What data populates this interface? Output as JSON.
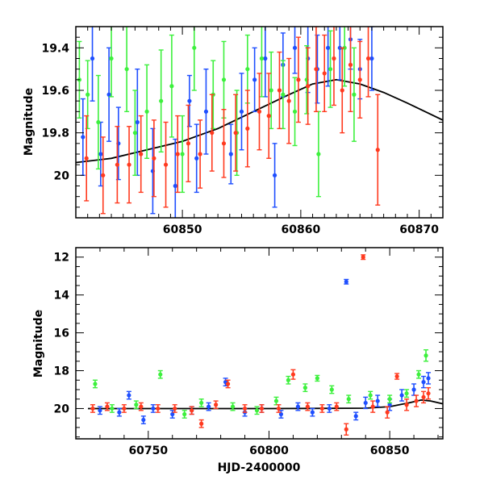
{
  "chart_data": [
    {
      "type": "scatter",
      "panel": "top",
      "xlabel": "",
      "ylabel": "Magnitude",
      "xlim": [
        60841,
        60872
      ],
      "ylim": [
        20.2,
        19.3
      ],
      "y_inverted": true,
      "grid": false,
      "x_ticks": [
        60850,
        60860,
        60870
      ],
      "y_ticks": [
        19.4,
        19.6,
        19.8,
        20
      ],
      "series": [
        {
          "color": "#1f4fff",
          "marker": "circle",
          "error_bars": true,
          "points": [
            {
              "x": 60841.6,
              "y": 19.82,
              "e": 0.18
            },
            {
              "x": 60842.4,
              "y": 19.45,
              "e": 0.2
            },
            {
              "x": 60843.1,
              "y": 19.9,
              "e": 0.15
            },
            {
              "x": 60843.8,
              "y": 19.62,
              "e": 0.22
            },
            {
              "x": 60844.6,
              "y": 19.85,
              "e": 0.17
            },
            {
              "x": 60846.2,
              "y": 19.75,
              "e": 0.25
            },
            {
              "x": 60847.5,
              "y": 19.98,
              "e": 0.2
            },
            {
              "x": 60849.4,
              "y": 20.05,
              "e": 0.22
            },
            {
              "x": 60850.6,
              "y": 19.65,
              "e": 0.12
            },
            {
              "x": 60851.2,
              "y": 19.92,
              "e": 0.16
            },
            {
              "x": 60852.0,
              "y": 19.7,
              "e": 0.2
            },
            {
              "x": 60854.1,
              "y": 19.9,
              "e": 0.14
            },
            {
              "x": 60855.0,
              "y": 19.7,
              "e": 0.18
            },
            {
              "x": 60856.1,
              "y": 19.55,
              "e": 0.15
            },
            {
              "x": 60857.0,
              "y": 19.45,
              "e": 0.18
            },
            {
              "x": 60857.8,
              "y": 20.0,
              "e": 0.15
            },
            {
              "x": 60858.5,
              "y": 19.48,
              "e": 0.15
            },
            {
              "x": 60859.5,
              "y": 19.4,
              "e": 0.12
            },
            {
              "x": 60860.6,
              "y": 19.45,
              "e": 0.16
            },
            {
              "x": 60861.4,
              "y": 19.5,
              "e": 0.16
            },
            {
              "x": 60862.3,
              "y": 19.4,
              "e": 0.18
            },
            {
              "x": 60863.3,
              "y": 19.4,
              "e": 0.15
            },
            {
              "x": 60864.2,
              "y": 19.36,
              "e": 0.14
            },
            {
              "x": 60865.0,
              "y": 19.5,
              "e": 0.14
            },
            {
              "x": 60866.0,
              "y": 19.45,
              "e": 0.15
            }
          ]
        },
        {
          "color": "#3df03d",
          "marker": "circle",
          "error_bars": true,
          "points": [
            {
              "x": 60841.3,
              "y": 19.55,
              "e": 0.18
            },
            {
              "x": 60842.0,
              "y": 19.62,
              "e": 0.16
            },
            {
              "x": 60842.9,
              "y": 19.75,
              "e": 0.22
            },
            {
              "x": 60844.0,
              "y": 19.45,
              "e": 0.18
            },
            {
              "x": 60845.3,
              "y": 19.5,
              "e": 0.2
            },
            {
              "x": 60846.0,
              "y": 19.8,
              "e": 0.2
            },
            {
              "x": 60847.0,
              "y": 19.7,
              "e": 0.22
            },
            {
              "x": 60848.2,
              "y": 19.65,
              "e": 0.24
            },
            {
              "x": 60849.1,
              "y": 19.58,
              "e": 0.24
            },
            {
              "x": 60850.0,
              "y": 19.9,
              "e": 0.18
            },
            {
              "x": 60851.0,
              "y": 19.4,
              "e": 0.2
            },
            {
              "x": 60852.6,
              "y": 19.62,
              "e": 0.16
            },
            {
              "x": 60853.5,
              "y": 19.55,
              "e": 0.18
            },
            {
              "x": 60854.6,
              "y": 19.8,
              "e": 0.2
            },
            {
              "x": 60855.5,
              "y": 19.5,
              "e": 0.16
            },
            {
              "x": 60856.7,
              "y": 19.45,
              "e": 0.18
            },
            {
              "x": 60857.5,
              "y": 19.6,
              "e": 0.18
            },
            {
              "x": 60858.5,
              "y": 19.62,
              "e": 0.16
            },
            {
              "x": 60859.5,
              "y": 19.7,
              "e": 0.16
            },
            {
              "x": 60860.5,
              "y": 19.55,
              "e": 0.16
            },
            {
              "x": 60861.5,
              "y": 19.9,
              "e": 0.2
            },
            {
              "x": 60862.5,
              "y": 19.5,
              "e": 0.18
            },
            {
              "x": 60863.7,
              "y": 19.4,
              "e": 0.18
            },
            {
              "x": 60864.5,
              "y": 19.62,
              "e": 0.22
            }
          ]
        },
        {
          "color": "#ff3a1f",
          "marker": "circle",
          "error_bars": true,
          "points": [
            {
              "x": 60841.9,
              "y": 19.92,
              "e": 0.2
            },
            {
              "x": 60843.3,
              "y": 20.0,
              "e": 0.18
            },
            {
              "x": 60844.5,
              "y": 19.95,
              "e": 0.18
            },
            {
              "x": 60845.5,
              "y": 19.95,
              "e": 0.18
            },
            {
              "x": 60846.5,
              "y": 19.9,
              "e": 0.18
            },
            {
              "x": 60847.6,
              "y": 19.92,
              "e": 0.18
            },
            {
              "x": 60848.6,
              "y": 19.95,
              "e": 0.2
            },
            {
              "x": 60849.6,
              "y": 19.9,
              "e": 0.18
            },
            {
              "x": 60850.5,
              "y": 19.85,
              "e": 0.18
            },
            {
              "x": 60851.5,
              "y": 19.9,
              "e": 0.16
            },
            {
              "x": 60852.5,
              "y": 19.8,
              "e": 0.18
            },
            {
              "x": 60853.5,
              "y": 19.85,
              "e": 0.16
            },
            {
              "x": 60854.5,
              "y": 19.8,
              "e": 0.18
            },
            {
              "x": 60855.5,
              "y": 19.78,
              "e": 0.18
            },
            {
              "x": 60856.5,
              "y": 19.7,
              "e": 0.18
            },
            {
              "x": 60857.3,
              "y": 19.72,
              "e": 0.2
            },
            {
              "x": 60858.2,
              "y": 19.6,
              "e": 0.18
            },
            {
              "x": 60859.0,
              "y": 19.65,
              "e": 0.2
            },
            {
              "x": 60859.8,
              "y": 19.55,
              "e": 0.2
            },
            {
              "x": 60860.6,
              "y": 19.58,
              "e": 0.18
            },
            {
              "x": 60861.3,
              "y": 19.5,
              "e": 0.2
            },
            {
              "x": 60862.0,
              "y": 19.52,
              "e": 0.18
            },
            {
              "x": 60862.8,
              "y": 19.45,
              "e": 0.22
            },
            {
              "x": 60863.5,
              "y": 19.6,
              "e": 0.2
            },
            {
              "x": 60864.2,
              "y": 19.48,
              "e": 0.22
            },
            {
              "x": 60865.0,
              "y": 19.55,
              "e": 0.18
            },
            {
              "x": 60865.7,
              "y": 19.45,
              "e": 0.18
            },
            {
              "x": 60866.5,
              "y": 19.88,
              "e": 0.26
            }
          ]
        }
      ],
      "model_curve": {
        "color": "#000000",
        "points": [
          {
            "x": 60841,
            "y": 19.94
          },
          {
            "x": 60844,
            "y": 19.92
          },
          {
            "x": 60847,
            "y": 19.88
          },
          {
            "x": 60850,
            "y": 19.84
          },
          {
            "x": 60853,
            "y": 19.78
          },
          {
            "x": 60856,
            "y": 19.7
          },
          {
            "x": 60859,
            "y": 19.62
          },
          {
            "x": 60861,
            "y": 19.57
          },
          {
            "x": 60863,
            "y": 19.55
          },
          {
            "x": 60865,
            "y": 19.57
          },
          {
            "x": 60867,
            "y": 19.61
          },
          {
            "x": 60869,
            "y": 19.66
          },
          {
            "x": 60872,
            "y": 19.74
          }
        ]
      }
    },
    {
      "type": "scatter",
      "panel": "bottom",
      "xlabel": "HJD-2400000",
      "ylabel": "Magnitude",
      "xlim": [
        60720,
        60872
      ],
      "ylim": [
        21.6,
        11.5
      ],
      "y_inverted": true,
      "grid": false,
      "x_ticks": [
        60750,
        60800,
        60850
      ],
      "y_ticks": [
        12,
        14,
        16,
        18,
        20
      ],
      "series": [
        {
          "color": "#1f4fff",
          "marker": "circle",
          "error_bars": true,
          "points": [
            {
              "x": 60730,
              "y": 20.1,
              "e": 0.2
            },
            {
              "x": 60738,
              "y": 20.2,
              "e": 0.2
            },
            {
              "x": 60742,
              "y": 19.3,
              "e": 0.2
            },
            {
              "x": 60748,
              "y": 20.6,
              "e": 0.2
            },
            {
              "x": 60752,
              "y": 20.0,
              "e": 0.2
            },
            {
              "x": 60760,
              "y": 20.3,
              "e": 0.2
            },
            {
              "x": 60768,
              "y": 20.1,
              "e": 0.2
            },
            {
              "x": 60775,
              "y": 19.9,
              "e": 0.2
            },
            {
              "x": 60782,
              "y": 18.6,
              "e": 0.2
            },
            {
              "x": 60790,
              "y": 20.2,
              "e": 0.2
            },
            {
              "x": 60797,
              "y": 20.0,
              "e": 0.2
            },
            {
              "x": 60805,
              "y": 20.3,
              "e": 0.2
            },
            {
              "x": 60812,
              "y": 19.9,
              "e": 0.2
            },
            {
              "x": 60818,
              "y": 20.2,
              "e": 0.2
            },
            {
              "x": 60825,
              "y": 20.0,
              "e": 0.2
            },
            {
              "x": 60832,
              "y": 13.3,
              "e": 0.12
            },
            {
              "x": 60836,
              "y": 20.4,
              "e": 0.2
            },
            {
              "x": 60840,
              "y": 19.7,
              "e": 0.3
            },
            {
              "x": 60845,
              "y": 19.6,
              "e": 0.3
            },
            {
              "x": 60850,
              "y": 19.8,
              "e": 0.3
            },
            {
              "x": 60855,
              "y": 19.3,
              "e": 0.3
            },
            {
              "x": 60860,
              "y": 19.0,
              "e": 0.3
            },
            {
              "x": 60864,
              "y": 18.6,
              "e": 0.3
            },
            {
              "x": 60866,
              "y": 18.4,
              "e": 0.3
            }
          ]
        },
        {
          "color": "#3df03d",
          "marker": "circle",
          "error_bars": true,
          "points": [
            {
              "x": 60728,
              "y": 18.7,
              "e": 0.2
            },
            {
              "x": 60735,
              "y": 20.0,
              "e": 0.2
            },
            {
              "x": 60745,
              "y": 19.8,
              "e": 0.2
            },
            {
              "x": 60755,
              "y": 18.2,
              "e": 0.2
            },
            {
              "x": 60765,
              "y": 20.3,
              "e": 0.2
            },
            {
              "x": 60772,
              "y": 19.7,
              "e": 0.2
            },
            {
              "x": 60785,
              "y": 19.9,
              "e": 0.2
            },
            {
              "x": 60795,
              "y": 20.1,
              "e": 0.2
            },
            {
              "x": 60803,
              "y": 19.6,
              "e": 0.2
            },
            {
              "x": 60808,
              "y": 18.5,
              "e": 0.2
            },
            {
              "x": 60815,
              "y": 18.9,
              "e": 0.2
            },
            {
              "x": 60820,
              "y": 18.4,
              "e": 0.15
            },
            {
              "x": 60826,
              "y": 19.0,
              "e": 0.2
            },
            {
              "x": 60833,
              "y": 19.5,
              "e": 0.2
            },
            {
              "x": 60842,
              "y": 19.3,
              "e": 0.2
            },
            {
              "x": 60850,
              "y": 19.5,
              "e": 0.2
            },
            {
              "x": 60857,
              "y": 19.2,
              "e": 0.2
            },
            {
              "x": 60862,
              "y": 18.2,
              "e": 0.2
            },
            {
              "x": 60865,
              "y": 17.2,
              "e": 0.3
            }
          ]
        },
        {
          "color": "#ff3a1f",
          "marker": "circle",
          "error_bars": true,
          "points": [
            {
              "x": 60727,
              "y": 20.0,
              "e": 0.2
            },
            {
              "x": 60733,
              "y": 19.9,
              "e": 0.2
            },
            {
              "x": 60740,
              "y": 20.0,
              "e": 0.2
            },
            {
              "x": 60747,
              "y": 19.9,
              "e": 0.2
            },
            {
              "x": 60754,
              "y": 20.0,
              "e": 0.2
            },
            {
              "x": 60761,
              "y": 20.0,
              "e": 0.2
            },
            {
              "x": 60768,
              "y": 20.1,
              "e": 0.2
            },
            {
              "x": 60772,
              "y": 20.8,
              "e": 0.2
            },
            {
              "x": 60778,
              "y": 19.8,
              "e": 0.2
            },
            {
              "x": 60783,
              "y": 18.7,
              "e": 0.2
            },
            {
              "x": 60790,
              "y": 20.0,
              "e": 0.2
            },
            {
              "x": 60797,
              "y": 20.0,
              "e": 0.2
            },
            {
              "x": 60804,
              "y": 20.0,
              "e": 0.2
            },
            {
              "x": 60810,
              "y": 18.2,
              "e": 0.25
            },
            {
              "x": 60816,
              "y": 19.9,
              "e": 0.2
            },
            {
              "x": 60822,
              "y": 20.0,
              "e": 0.2
            },
            {
              "x": 60828,
              "y": 19.9,
              "e": 0.2
            },
            {
              "x": 60832,
              "y": 21.1,
              "e": 0.3
            },
            {
              "x": 60839,
              "y": 12.0,
              "e": 0.12
            },
            {
              "x": 60843,
              "y": 19.9,
              "e": 0.3
            },
            {
              "x": 60849,
              "y": 20.2,
              "e": 0.3
            },
            {
              "x": 60853,
              "y": 18.3,
              "e": 0.15
            },
            {
              "x": 60857,
              "y": 19.8,
              "e": 0.3
            },
            {
              "x": 60861,
              "y": 19.6,
              "e": 0.3
            },
            {
              "x": 60864,
              "y": 19.4,
              "e": 0.3
            },
            {
              "x": 60866,
              "y": 19.2,
              "e": 0.3
            }
          ]
        }
      ],
      "model_curve": {
        "color": "#000000",
        "points": [
          {
            "x": 60725,
            "y": 20.0
          },
          {
            "x": 60760,
            "y": 20.0
          },
          {
            "x": 60800,
            "y": 20.0
          },
          {
            "x": 60840,
            "y": 19.98
          },
          {
            "x": 60850,
            "y": 19.9
          },
          {
            "x": 60858,
            "y": 19.7
          },
          {
            "x": 60863,
            "y": 19.55
          },
          {
            "x": 60867,
            "y": 19.6
          },
          {
            "x": 60872,
            "y": 19.75
          }
        ]
      }
    }
  ]
}
